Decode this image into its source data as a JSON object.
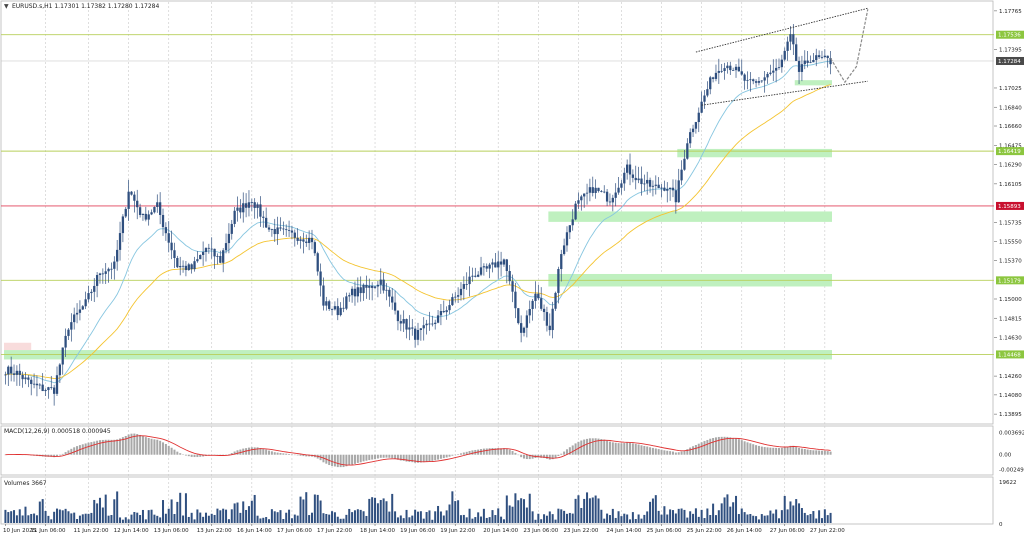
{
  "header": {
    "symbol_info": "EURUSD.s,H1  1.17301 1.17382 1.17280 1.17284"
  },
  "colors": {
    "candle": "#2f4f7f",
    "ma_fast": "#87c6e0",
    "ma_slow": "#f4c430",
    "support_zone": "#bff0bf",
    "support_line": "#b7cf5a",
    "resistance_line": "#e0405a",
    "red_zone": "#f8dcdc",
    "macd_hist": "#a8a8a8",
    "macd_signal": "#e03030",
    "volume": "#2f4f7f",
    "price_marker": "#4a4a4a",
    "level_marker": "#8cc63f",
    "level_marker_red": "#c8102e"
  },
  "chart_data": [
    {
      "type": "candlestick",
      "title": "EURUSD.s,H1",
      "ohlc_current": {
        "open": 1.17301,
        "high": 1.17382,
        "low": 1.1728,
        "close": 1.17284
      },
      "y_ticks": [
        1.17765,
        1.17395,
        1.17025,
        1.1684,
        1.1666,
        1.16475,
        1.1629,
        1.16105,
        1.15735,
        1.1555,
        1.1537,
        1.15,
        1.14815,
        1.1463,
        1.1426,
        1.1408,
        1.13895
      ],
      "y_tick_labels": [
        "1.17765",
        "1.17395",
        "1.17025",
        "1.16840",
        "1.16660",
        "1.16475",
        "1.16290",
        "1.16105",
        "1.15735",
        "1.15550",
        "1.15370",
        "1.15000",
        "1.14815",
        "1.14630",
        "1.14260",
        "1.14080",
        "1.13895"
      ],
      "ylim": [
        1.1381,
        1.1785
      ],
      "x_labels": [
        "10 Jun 2025",
        "11 Jun 06:00",
        "11 Jun 22:00",
        "12 Jun 14:00",
        "13 Jun 06:00",
        "13 Jun 22:00",
        "16 Jun 14:00",
        "17 Jun 06:00",
        "17 Jun 22:00",
        "18 Jun 14:00",
        "19 Jun 06:00",
        "19 Jun 22:00",
        "20 Jun 14:00",
        "23 Jun 06:00",
        "23 Jun 22:00",
        "24 Jun 14:00",
        "25 Jun 06:00",
        "25 Jun 22:00",
        "26 Jun 14:00",
        "27 Jun 06:00",
        "27 Jun 22:00"
      ],
      "horizontal_levels": [
        {
          "value": 1.17536,
          "label": "1.17536",
          "kind": "support"
        },
        {
          "value": 1.17284,
          "label": "1.17284",
          "kind": "current_price"
        },
        {
          "value": 1.16419,
          "label": "1.16419",
          "kind": "support"
        },
        {
          "value": 1.15893,
          "label": "1.15893",
          "kind": "resistance"
        },
        {
          "value": 1.15179,
          "label": "1.15179",
          "kind": "support"
        },
        {
          "value": 1.14468,
          "label": "1.14468",
          "kind": "support"
        }
      ],
      "zones": [
        {
          "from": 1.1442,
          "to": 1.1451,
          "kind": "support",
          "start_bar": 0
        },
        {
          "from": 1.1451,
          "to": 1.1458,
          "kind": "red",
          "start_bar": 0,
          "end_bar": 9
        },
        {
          "from": 1.1512,
          "to": 1.1524,
          "kind": "support",
          "start_bar": 190
        },
        {
          "from": 1.1574,
          "to": 1.1584,
          "kind": "support",
          "start_bar": 190
        },
        {
          "from": 1.1636,
          "to": 1.1644,
          "kind": "support",
          "start_bar": 235
        },
        {
          "from": 1.1705,
          "to": 1.171,
          "kind": "support",
          "start_bar": 276
        }
      ],
      "channel": {
        "upper": [
          {
            "bar": 241,
            "value": 1.1737
          },
          {
            "bar": 301,
            "value": 1.1779
          }
        ],
        "lower": [
          {
            "bar": 243,
            "value": 1.1686
          },
          {
            "bar": 301,
            "value": 1.1709
          }
        ]
      },
      "forecast_path": [
        {
          "bar": 288,
          "value": 1.1731
        },
        {
          "bar": 293,
          "value": 1.1708
        },
        {
          "bar": 297,
          "value": 1.1723
        },
        {
          "bar": 301,
          "value": 1.1778
        }
      ],
      "price_anchors": [
        {
          "bar": 0,
          "value": 1.1432
        },
        {
          "bar": 4,
          "value": 1.1429
        },
        {
          "bar": 9,
          "value": 1.1418
        },
        {
          "bar": 13,
          "value": 1.1414
        },
        {
          "bar": 17,
          "value": 1.1413
        },
        {
          "bar": 22,
          "value": 1.1474
        },
        {
          "bar": 28,
          "value": 1.1496
        },
        {
          "bar": 33,
          "value": 1.1526
        },
        {
          "bar": 38,
          "value": 1.1532
        },
        {
          "bar": 43,
          "value": 1.1605
        },
        {
          "bar": 48,
          "value": 1.1578
        },
        {
          "bar": 53,
          "value": 1.1589
        },
        {
          "bar": 55,
          "value": 1.1572
        },
        {
          "bar": 60,
          "value": 1.1532
        },
        {
          "bar": 65,
          "value": 1.1529
        },
        {
          "bar": 70,
          "value": 1.1549
        },
        {
          "bar": 75,
          "value": 1.1537
        },
        {
          "bar": 80,
          "value": 1.1582
        },
        {
          "bar": 86,
          "value": 1.1596
        },
        {
          "bar": 92,
          "value": 1.1567
        },
        {
          "bar": 99,
          "value": 1.1562
        },
        {
          "bar": 107,
          "value": 1.1557
        },
        {
          "bar": 111,
          "value": 1.1496
        },
        {
          "bar": 116,
          "value": 1.1488
        },
        {
          "bar": 121,
          "value": 1.1506
        },
        {
          "bar": 127,
          "value": 1.1511
        },
        {
          "bar": 131,
          "value": 1.1518
        },
        {
          "bar": 137,
          "value": 1.1483
        },
        {
          "bar": 143,
          "value": 1.1465
        },
        {
          "bar": 148,
          "value": 1.1474
        },
        {
          "bar": 152,
          "value": 1.1485
        },
        {
          "bar": 158,
          "value": 1.1505
        },
        {
          "bar": 163,
          "value": 1.1523
        },
        {
          "bar": 168,
          "value": 1.1528
        },
        {
          "bar": 174,
          "value": 1.1538
        },
        {
          "bar": 180,
          "value": 1.1468
        },
        {
          "bar": 185,
          "value": 1.1505
        },
        {
          "bar": 190,
          "value": 1.1472
        },
        {
          "bar": 194,
          "value": 1.1545
        },
        {
          "bar": 199,
          "value": 1.1589
        },
        {
          "bar": 205,
          "value": 1.1606
        },
        {
          "bar": 211,
          "value": 1.1596
        },
        {
          "bar": 217,
          "value": 1.1625
        },
        {
          "bar": 221,
          "value": 1.1614
        },
        {
          "bar": 226,
          "value": 1.1607
        },
        {
          "bar": 231,
          "value": 1.1608
        },
        {
          "bar": 234,
          "value": 1.1596
        },
        {
          "bar": 238,
          "value": 1.1652
        },
        {
          "bar": 243,
          "value": 1.1688
        },
        {
          "bar": 247,
          "value": 1.1715
        },
        {
          "bar": 251,
          "value": 1.1726
        },
        {
          "bar": 254,
          "value": 1.1722
        },
        {
          "bar": 259,
          "value": 1.1707
        },
        {
          "bar": 262,
          "value": 1.1706
        },
        {
          "bar": 266,
          "value": 1.1716
        },
        {
          "bar": 270,
          "value": 1.1721
        },
        {
          "bar": 274,
          "value": 1.1751
        },
        {
          "bar": 277,
          "value": 1.1718
        },
        {
          "bar": 281,
          "value": 1.1731
        },
        {
          "bar": 285,
          "value": 1.173
        },
        {
          "bar": 288,
          "value": 1.1728
        }
      ],
      "bar_count": 289,
      "indicators": {
        "ma_fast": {
          "color": "#87c6e0",
          "period_smoothing": "fast"
        },
        "ma_slow": {
          "color": "#f4c430",
          "period_smoothing": "slow"
        }
      }
    },
    {
      "type": "macd",
      "title": "MACD(12,26,9) 0.000518 0.000945",
      "y_ticks": [
        0.003692,
        0.0,
        -0.002494
      ],
      "y_tick_labels": [
        "0.003692",
        "0.00",
        "-0.002494"
      ],
      "ylim": [
        -0.0032,
        0.0046
      ]
    },
    {
      "type": "volume",
      "title": "Volumes 3667",
      "y_ticks": [
        19622,
        0
      ],
      "y_tick_labels": [
        "19622",
        "0"
      ],
      "ylim": [
        0,
        21000
      ]
    }
  ]
}
